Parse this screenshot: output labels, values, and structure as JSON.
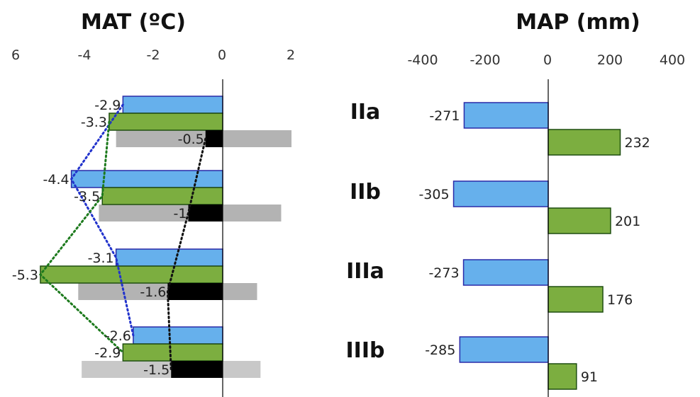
{
  "chart_data": [
    {
      "type": "bar",
      "orientation": "horizontal",
      "title": "MAT (ºC)",
      "xlim": [
        6,
        -6
      ],
      "x_ticks": [
        "6",
        "-4",
        "-2",
        "0",
        "2"
      ],
      "categories": [
        "IIa",
        "IIb",
        "IIIa",
        "IIIb"
      ],
      "series": [
        {
          "color": "#66b0ec",
          "values": [
            -2.9,
            -4.4,
            -3.1,
            -2.6
          ]
        },
        {
          "color": "#7cae40",
          "values": [
            -3.3,
            -3.5,
            -5.3,
            -2.9
          ]
        },
        {
          "color": "#000000",
          "values": [
            -0.5,
            -1,
            -1.6,
            -1.5
          ]
        }
      ],
      "value_labels": [
        [
          "-2.9",
          "-3.3",
          "-0.5"
        ],
        [
          "-4.4",
          "-3.5",
          "-1"
        ],
        [
          "-3.1",
          "-5.3",
          "-1.6"
        ],
        [
          "-2.6",
          "-2.9",
          "-1.5"
        ]
      ],
      "range_bars": [
        {
          "color": "#b3b3b3",
          "low": -3.1,
          "high": 2.0
        },
        {
          "color": "#b3b3b3",
          "low": -3.6,
          "high": 1.7
        },
        {
          "color": "#b3b3b3",
          "low": -4.2,
          "high": 1.0
        },
        {
          "color": "#c8c8c8",
          "low": -4.1,
          "high": 1.1
        }
      ],
      "connector_lines": [
        {
          "series_index": 0,
          "color": "#2233cc",
          "style": "dotted"
        },
        {
          "series_index": 1,
          "color": "#1d7a1d",
          "style": "dotted"
        },
        {
          "series_index": 2,
          "color": "#111111",
          "style": "dotted"
        }
      ],
      "grid": false,
      "legend": "none"
    },
    {
      "type": "bar",
      "orientation": "horizontal",
      "title": "MAP (mm)",
      "xlim": [
        -400,
        400
      ],
      "x_ticks": [
        "-400",
        "-200",
        "0",
        "200",
        "400"
      ],
      "categories": [
        "IIa",
        "IIb",
        "IIIa",
        "IIIb"
      ],
      "series": [
        {
          "color": "#66b0ec",
          "values": [
            -271,
            -305,
            -273,
            -285
          ]
        },
        {
          "color": "#7cae40",
          "values": [
            232,
            201,
            176,
            91
          ]
        }
      ],
      "value_labels": [
        [
          "-271",
          "232"
        ],
        [
          "-305",
          "201"
        ],
        [
          "-273",
          "176"
        ],
        [
          "-285",
          "91"
        ]
      ],
      "grid": false,
      "legend": "none"
    }
  ]
}
